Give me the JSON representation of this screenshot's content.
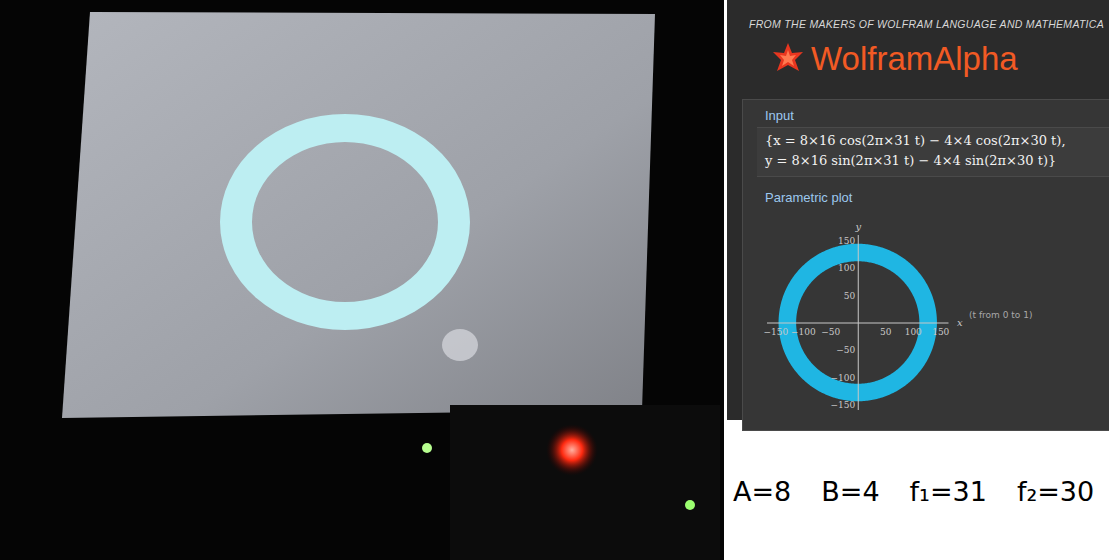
{
  "header": {
    "tagline": "FROM THE MAKERS OF WOLFRAM LANGUAGE AND MATHEMATICA",
    "logo": "WolframAlpha"
  },
  "input": {
    "title": "Input",
    "lines": [
      "{x = 8×16 cos(2π×31 t) − 4×4 cos(2π×30 t),",
      " y = 8×16 sin(2π×31 t) − 4×4 sin(2π×30 t)}"
    ]
  },
  "chart_data": {
    "type": "ring",
    "title": "Parametric plot",
    "x_label": "x",
    "y_label": "y",
    "annotation": "(t from 0 to 1)",
    "inner_radius": 112,
    "outer_radius": 144,
    "color": "#1fb6e3",
    "xlim": [
      -165,
      165
    ],
    "ylim": [
      -160,
      160
    ],
    "xticks": [
      -150,
      -100,
      -50,
      50,
      100,
      150
    ],
    "yticks": [
      -150,
      -100,
      -50,
      50,
      100,
      150
    ]
  },
  "caption": [
    "A=8",
    "B=4",
    "f₁=31",
    "f₂=30"
  ]
}
